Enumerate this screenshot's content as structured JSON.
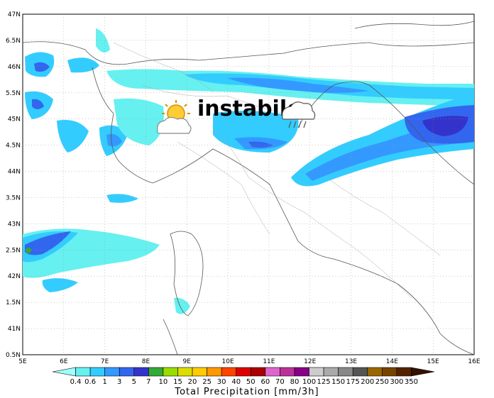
{
  "map": {
    "annotation": "instabile",
    "annotation_icons": [
      "sun-cloud-icon",
      "rain-cloud-icon"
    ],
    "lat_ticks": [
      "47N",
      "6.5N",
      "46N",
      "5.5N",
      "45N",
      "4.5N",
      "44N",
      "3.5N",
      "43N",
      "2.5N",
      "42N",
      "1.5N",
      "41N",
      "0.5N"
    ],
    "lon_ticks": [
      "5E",
      "6E",
      "7E",
      "8E",
      "9E",
      "10E",
      "11E",
      "12E",
      "13E",
      "14E",
      "15E",
      "16E"
    ],
    "extent": {
      "lon": [
        5,
        16
      ],
      "lat": [
        40.5,
        47
      ]
    }
  },
  "legend": {
    "title": "Total Precipitation [mm/3h]",
    "levels": [
      "0.4",
      "0.6",
      "1",
      "3",
      "5",
      "7",
      "10",
      "15",
      "20",
      "25",
      "30",
      "40",
      "50",
      "60",
      "70",
      "80",
      "100",
      "125",
      "150",
      "175",
      "200",
      "250",
      "300",
      "350"
    ],
    "colors": [
      "#a0ffff",
      "#66f0f0",
      "#33ccff",
      "#3399ff",
      "#3366ee",
      "#3333cc",
      "#33aa33",
      "#99dd00",
      "#dddd00",
      "#ffcc00",
      "#ff9900",
      "#ff4400",
      "#dd0000",
      "#aa0000",
      "#dd66cc",
      "#bb3399",
      "#880088",
      "#cccccc",
      "#aaaaaa",
      "#888888",
      "#555555",
      "#996600",
      "#774400",
      "#552200",
      "#331100"
    ]
  }
}
